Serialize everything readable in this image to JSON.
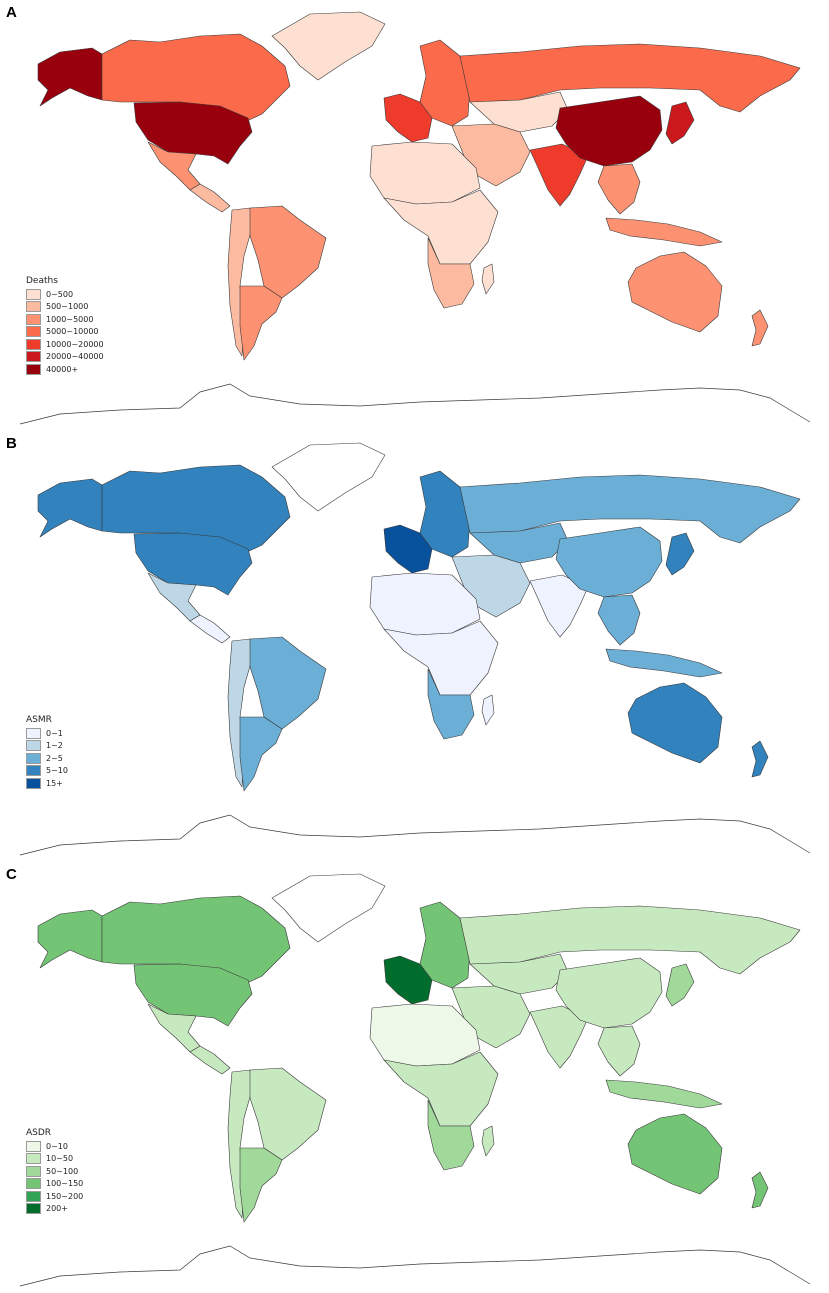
{
  "panels": [
    {
      "letter": "A",
      "legend_title": "Deaths",
      "classes": [
        {
          "label": "0~500",
          "color": "#fde0d2"
        },
        {
          "label": "500~1000",
          "color": "#fcbba1"
        },
        {
          "label": "1000~5000",
          "color": "#fc9272"
        },
        {
          "label": "5000~10000",
          "color": "#fb6a4a"
        },
        {
          "label": "10000~20000",
          "color": "#ef3b2c"
        },
        {
          "label": "20000~40000",
          "color": "#cb181d"
        },
        {
          "label": "40000+",
          "color": "#99000d"
        }
      ],
      "regions": {
        "alaska": "#99000d",
        "usa": "#99000d",
        "canada": "#fb6a4a",
        "greenland": "#fde0d2",
        "mexico": "#fc9272",
        "central_america": "#fcbba1",
        "brazil": "#fc9272",
        "andean": "#fcbba1",
        "southern_cone": "#fc9272",
        "western_europe": "#ef3b2c",
        "eastern_europe": "#fb6a4a",
        "russia": "#fb6a4a",
        "central_asia": "#fde0d2",
        "middle_east": "#fcbba1",
        "north_africa": "#fde0d2",
        "central_africa": "#fde0d2",
        "southern_africa": "#fcbba1",
        "madagascar": "#fde0d2",
        "south_asia": "#ef3b2c",
        "china": "#99000d",
        "japan": "#cb181d",
        "southeast_asia": "#fc9272",
        "indonesia": "#fc9272",
        "australia": "#fc9272",
        "new_zealand": "#fc9272"
      }
    },
    {
      "letter": "B",
      "legend_title": "ASMR",
      "classes": [
        {
          "label": "0~1",
          "color": "#eff3ff"
        },
        {
          "label": "1~2",
          "color": "#bdd7e7"
        },
        {
          "label": "2~5",
          "color": "#6baed6"
        },
        {
          "label": "5~10",
          "color": "#3182bd"
        },
        {
          "label": "15+",
          "color": "#08519c"
        }
      ],
      "regions": {
        "alaska": "#3182bd",
        "usa": "#3182bd",
        "canada": "#3182bd",
        "greenland": "#ffffff",
        "mexico": "#bdd7e7",
        "central_america": "#eff3ff",
        "brazil": "#6baed6",
        "andean": "#bdd7e7",
        "southern_cone": "#6baed6",
        "western_europe": "#08519c",
        "eastern_europe": "#3182bd",
        "russia": "#6baed6",
        "central_asia": "#6baed6",
        "middle_east": "#bdd7e7",
        "north_africa": "#eff3ff",
        "central_africa": "#eff3ff",
        "southern_africa": "#6baed6",
        "madagascar": "#eff3ff",
        "south_asia": "#eff3ff",
        "china": "#6baed6",
        "japan": "#3182bd",
        "southeast_asia": "#6baed6",
        "indonesia": "#6baed6",
        "australia": "#3182bd",
        "new_zealand": "#3182bd"
      }
    },
    {
      "letter": "C",
      "legend_title": "ASDR",
      "classes": [
        {
          "label": "0~10",
          "color": "#edf8e9"
        },
        {
          "label": "10~50",
          "color": "#c7e9c0"
        },
        {
          "label": "50~100",
          "color": "#a1d99b"
        },
        {
          "label": "100~150",
          "color": "#74c476"
        },
        {
          "label": "150~200",
          "color": "#31a354"
        },
        {
          "label": "200+",
          "color": "#006d2c"
        }
      ],
      "regions": {
        "alaska": "#74c476",
        "usa": "#74c476",
        "canada": "#74c476",
        "greenland": "#ffffff",
        "mexico": "#c7e9c0",
        "central_america": "#c7e9c0",
        "brazil": "#c7e9c0",
        "andean": "#c7e9c0",
        "southern_cone": "#a1d99b",
        "western_europe": "#006d2c",
        "eastern_europe": "#74c476",
        "russia": "#c7e9c0",
        "central_asia": "#c7e9c0",
        "middle_east": "#c7e9c0",
        "north_africa": "#edf8e9",
        "central_africa": "#c7e9c0",
        "southern_africa": "#a1d99b",
        "madagascar": "#c7e9c0",
        "south_asia": "#c7e9c0",
        "china": "#c7e9c0",
        "japan": "#a1d99b",
        "southeast_asia": "#c7e9c0",
        "indonesia": "#a1d99b",
        "australia": "#74c476",
        "new_zealand": "#74c476"
      }
    }
  ]
}
